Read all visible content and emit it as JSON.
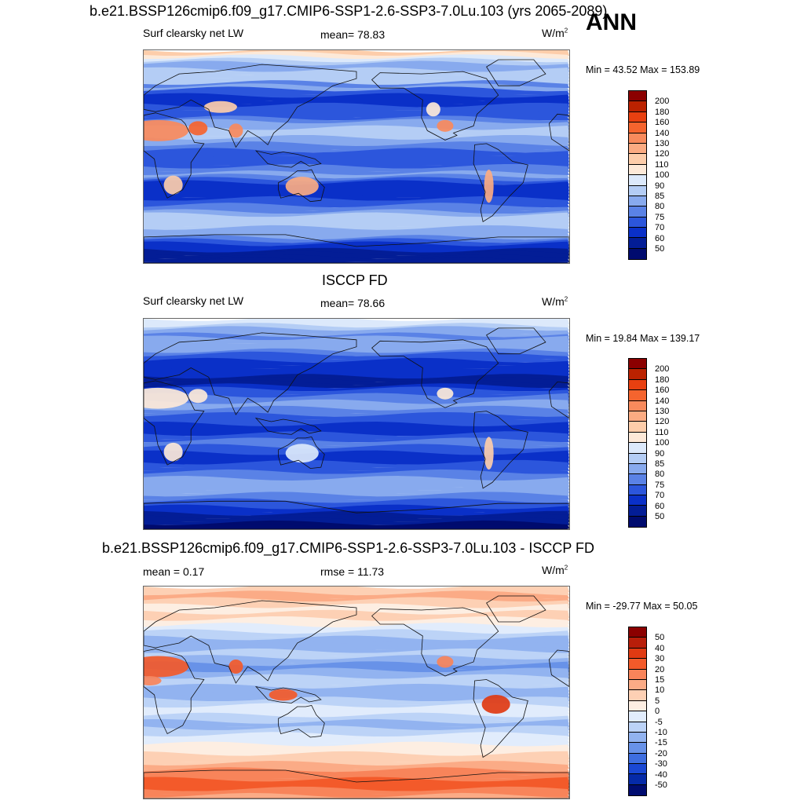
{
  "season": "ANN",
  "panels": [
    {
      "title": "b.e21.BSSP126cmip6.f09_g17.CMIP6-SSP1-2.6-SSP3-7.0Lu.103 (yrs 2065-2089)",
      "variable": "Surf clearsky net LW",
      "mean_label": "mean=  78.83",
      "units": "W/m",
      "units_sup": "2",
      "minmax": "Min =  43.52 Max = 153.89",
      "palette": "abs",
      "colorbar_labels": [
        "200",
        "180",
        "160",
        "140",
        "130",
        "120",
        "110",
        "100",
        "90",
        "85",
        "80",
        "75",
        "70",
        "60",
        "50"
      ]
    },
    {
      "title": "ISCCP FD",
      "variable": "Surf clearsky net LW",
      "mean_label": "mean=  78.66",
      "units": "W/m",
      "units_sup": "2",
      "minmax": "Min =  19.84 Max = 139.17",
      "palette": "abs",
      "colorbar_labels": [
        "200",
        "180",
        "160",
        "140",
        "130",
        "120",
        "110",
        "100",
        "90",
        "85",
        "80",
        "75",
        "70",
        "60",
        "50"
      ]
    },
    {
      "title": "b.e21.BSSP126cmip6.f09_g17.CMIP6-SSP1-2.6-SSP3-7.0Lu.103 - ISCCP FD",
      "mean_label": "mean =   0.17",
      "rmse_label": "rmse =  11.73",
      "units": "W/m",
      "units_sup": "2",
      "minmax": "Min = -29.77 Max =  50.05",
      "palette": "diff",
      "colorbar_labels": [
        "50",
        "40",
        "30",
        "20",
        "15",
        "10",
        "5",
        "0",
        "-5",
        "-10",
        "-15",
        "-20",
        "-30",
        "-40",
        "-50"
      ]
    }
  ],
  "colors": {
    "abs": [
      "#8b0000",
      "#bb2200",
      "#e84010",
      "#f5642e",
      "#f88a5c",
      "#fbab82",
      "#fdcdaa",
      "#fde9d8",
      "#dce9fb",
      "#b4cdf5",
      "#88aaee",
      "#5a82e6",
      "#2c56dc",
      "#0a30c8",
      "#031d96",
      "#000b6e"
    ],
    "diff": [
      "#8b0000",
      "#b81e0a",
      "#e03a12",
      "#f35a2a",
      "#f8845a",
      "#fbab86",
      "#fdd0b4",
      "#fdeee2",
      "#e1ecfc",
      "#bcd3f7",
      "#92b3f0",
      "#6892e8",
      "#3e6ee0",
      "#1a48d4",
      "#052aa8",
      "#000c70"
    ]
  },
  "map_fields": {
    "model": {
      "bands": [
        6,
        7,
        8,
        9,
        10,
        10,
        9,
        9,
        9,
        9,
        11,
        10,
        12,
        12,
        13,
        13,
        13,
        12,
        12,
        12,
        12,
        11,
        10,
        10,
        9,
        9,
        9,
        10,
        10,
        11,
        11,
        12,
        12,
        12,
        12,
        12,
        11,
        11,
        10,
        11,
        12,
        13,
        13,
        13,
        13,
        13,
        12,
        12,
        11,
        11,
        10,
        9,
        9,
        9,
        9,
        10,
        10,
        10,
        11,
        12,
        13,
        13,
        14,
        14,
        14,
        14
      ],
      "land_blobs": [
        {
          "name": "sahara",
          "ci": 4
        },
        {
          "name": "arabia",
          "ci": 3
        },
        {
          "name": "india",
          "ci": 4
        },
        {
          "name": "southern-africa",
          "ci": 6
        },
        {
          "name": "australia",
          "ci": 5
        },
        {
          "name": "andes",
          "ci": 5
        },
        {
          "name": "mexico",
          "ci": 4
        },
        {
          "name": "western-us",
          "ci": 7
        },
        {
          "name": "central-asia",
          "ci": 6
        }
      ]
    },
    "obs": {
      "bands": [
        8,
        8,
        9,
        10,
        10,
        11,
        10,
        10,
        10,
        10,
        11,
        12,
        12,
        13,
        13,
        13,
        13,
        13,
        14,
        14,
        14,
        13,
        12,
        12,
        11,
        11,
        10,
        10,
        11,
        11,
        12,
        12,
        12,
        13,
        13,
        13,
        12,
        12,
        11,
        11,
        12,
        12,
        13,
        13,
        13,
        12,
        12,
        12,
        11,
        11,
        10,
        10,
        10,
        10,
        10,
        11,
        11,
        12,
        12,
        13,
        13,
        14,
        14,
        14,
        15,
        15
      ],
      "land_blobs": [
        {
          "name": "sahara",
          "ci": 7
        },
        {
          "name": "arabia",
          "ci": 7
        },
        {
          "name": "southern-africa",
          "ci": 7
        },
        {
          "name": "australia",
          "ci": 8
        },
        {
          "name": "andes",
          "ci": 6
        },
        {
          "name": "mexico",
          "ci": 7
        }
      ]
    },
    "diff": {
      "bands": [
        6,
        6,
        5,
        5,
        6,
        6,
        7,
        7,
        6,
        6,
        7,
        7,
        8,
        8,
        9,
        9,
        10,
        10,
        10,
        10,
        9,
        9,
        10,
        10,
        11,
        11,
        10,
        10,
        9,
        9,
        9,
        10,
        10,
        10,
        10,
        9,
        9,
        8,
        8,
        8,
        9,
        9,
        10,
        10,
        9,
        9,
        8,
        8,
        8,
        7,
        7,
        7,
        6,
        6,
        6,
        5,
        5,
        4,
        4,
        4,
        3,
        3,
        3,
        4,
        4,
        5
      ],
      "land_blobs": [
        {
          "name": "sahara",
          "ci": 3
        },
        {
          "name": "india",
          "ci": 3
        },
        {
          "name": "amazon",
          "ci": 2
        },
        {
          "name": "maritime-continent",
          "ci": 3
        },
        {
          "name": "west-africa",
          "ci": 4
        },
        {
          "name": "mexico",
          "ci": 4
        }
      ]
    }
  }
}
